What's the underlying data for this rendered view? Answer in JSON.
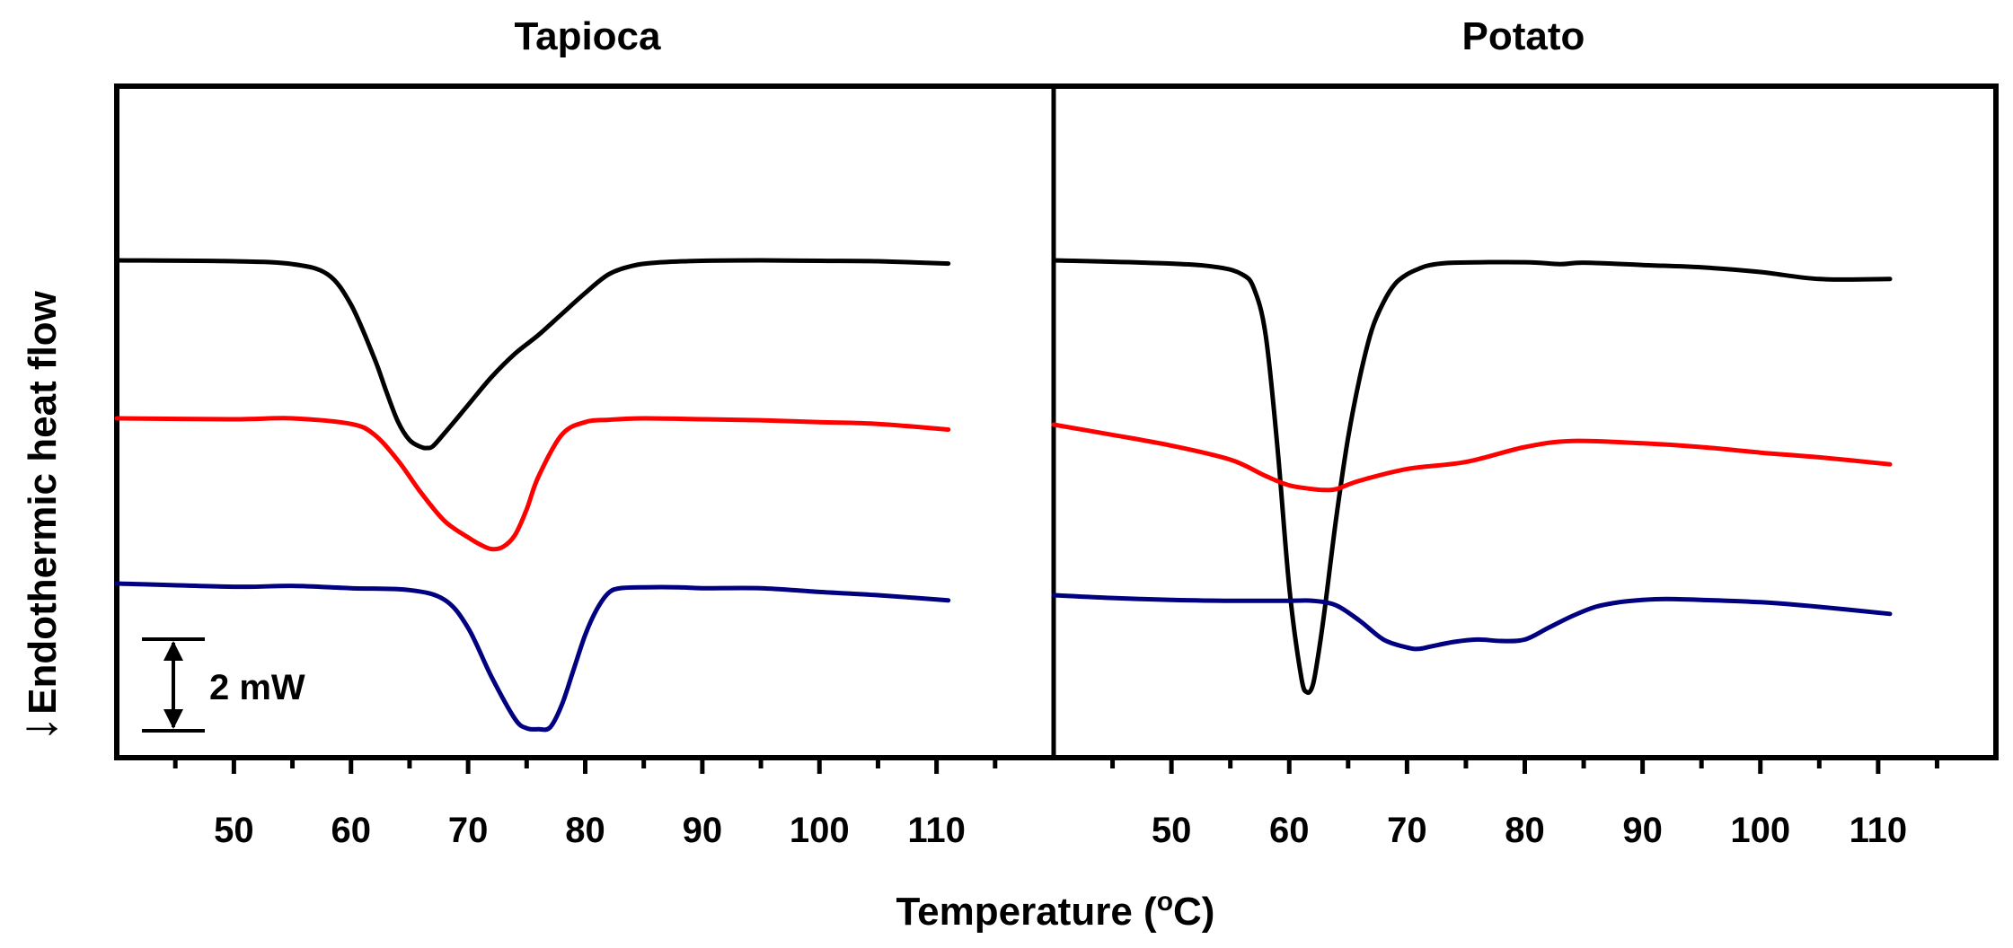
{
  "chart_data": [
    {
      "type": "line",
      "title": "Tapioca",
      "x_ticks": [
        50,
        60,
        70,
        80,
        90,
        100,
        110
      ],
      "xlim": [
        40,
        120
      ],
      "y_units": "mW (relative, offset curves)",
      "grid": false,
      "series": [
        {
          "color": "#000000",
          "x": [
            40,
            50,
            55,
            58,
            60,
            62,
            63,
            64,
            65,
            66,
            66.5,
            67,
            68,
            70,
            72,
            74,
            76,
            78,
            80,
            82,
            84,
            86,
            90,
            95,
            100,
            105,
            111
          ],
          "y": [
            0,
            -0.02,
            -0.08,
            -0.3,
            -0.95,
            -2.1,
            -2.8,
            -3.45,
            -3.85,
            -4.0,
            -4.02,
            -3.98,
            -3.7,
            -3.1,
            -2.5,
            -2.0,
            -1.6,
            -1.15,
            -0.7,
            -0.3,
            -0.12,
            -0.05,
            -0.01,
            0.0,
            -0.01,
            -0.02,
            -0.07
          ]
        },
        {
          "color": "#ff0000",
          "x": [
            40,
            50,
            55,
            60,
            62,
            64,
            66,
            68,
            70,
            71,
            72,
            73,
            74,
            75,
            76,
            78,
            80,
            82,
            85,
            90,
            95,
            100,
            105,
            111
          ],
          "y": [
            0,
            -0.02,
            0,
            -0.12,
            -0.35,
            -0.9,
            -1.6,
            -2.2,
            -2.55,
            -2.7,
            -2.8,
            -2.75,
            -2.5,
            -1.95,
            -1.25,
            -0.35,
            -0.08,
            -0.03,
            0.0,
            -0.02,
            -0.04,
            -0.08,
            -0.12,
            -0.24
          ]
        },
        {
          "color": "#000080",
          "x": [
            40,
            50,
            55,
            60,
            65,
            68,
            70,
            72,
            74,
            75,
            76,
            77,
            78,
            79,
            80,
            81,
            82,
            83,
            85,
            88,
            90,
            95,
            100,
            105,
            111
          ],
          "y": [
            0,
            -0.07,
            -0.05,
            -0.1,
            -0.14,
            -0.35,
            -0.95,
            -2.0,
            -2.9,
            -3.1,
            -3.12,
            -3.08,
            -2.6,
            -1.85,
            -1.1,
            -0.55,
            -0.2,
            -0.1,
            -0.08,
            -0.08,
            -0.1,
            -0.1,
            -0.18,
            -0.25,
            -0.36
          ]
        }
      ]
    },
    {
      "type": "line",
      "title": "Potato",
      "x_ticks": [
        50,
        60,
        70,
        80,
        90,
        100,
        110
      ],
      "xlim": [
        40,
        120
      ],
      "y_units": "mW (relative, offset curves)",
      "grid": false,
      "series": [
        {
          "color": "#000000",
          "x": [
            40,
            50,
            54,
            56,
            57,
            58,
            59,
            60,
            61,
            61.5,
            62,
            62.5,
            63,
            64,
            65,
            66,
            67,
            68,
            69,
            70,
            71,
            72,
            74,
            80,
            83,
            85,
            90,
            95,
            100,
            105,
            111
          ],
          "y": [
            0,
            -0.07,
            -0.15,
            -0.3,
            -0.6,
            -1.6,
            -4.0,
            -7.0,
            -8.9,
            -9.25,
            -9.1,
            -8.4,
            -7.5,
            -5.5,
            -3.8,
            -2.5,
            -1.5,
            -0.9,
            -0.5,
            -0.3,
            -0.18,
            -0.1,
            -0.05,
            -0.04,
            -0.08,
            -0.05,
            -0.1,
            -0.15,
            -0.25,
            -0.4,
            -0.4
          ]
        },
        {
          "color": "#ff0000",
          "x": [
            40,
            45,
            50,
            55,
            58,
            60,
            62,
            63,
            64,
            66,
            70,
            75,
            80,
            84,
            90,
            95,
            100,
            105,
            111
          ],
          "y": [
            0,
            -0.22,
            -0.45,
            -0.75,
            -1.1,
            -1.3,
            -1.38,
            -1.4,
            -1.38,
            -1.2,
            -0.95,
            -0.8,
            -0.48,
            -0.35,
            -0.4,
            -0.48,
            -0.6,
            -0.7,
            -0.85
          ]
        },
        {
          "color": "#000080",
          "x": [
            40,
            45,
            50,
            55,
            60,
            62,
            64,
            66,
            68,
            70,
            71,
            72,
            74,
            76,
            78,
            80,
            82,
            84,
            86,
            88,
            90,
            92,
            95,
            100,
            105,
            111
          ],
          "y": [
            0,
            -0.06,
            -0.1,
            -0.12,
            -0.12,
            -0.12,
            -0.22,
            -0.55,
            -0.95,
            -1.12,
            -1.15,
            -1.1,
            -1.0,
            -0.95,
            -0.98,
            -0.95,
            -0.7,
            -0.45,
            -0.25,
            -0.15,
            -0.1,
            -0.08,
            -0.1,
            -0.15,
            -0.25,
            -0.4
          ]
        }
      ]
    }
  ],
  "figure": {
    "ylabel": "Endothermic heat flow",
    "ylabel_arrow": "↓",
    "xlabel_main": "Temperature (",
    "xlabel_sup": "o",
    "xlabel_end": "C)",
    "scale_bar_label": "2 mW"
  }
}
